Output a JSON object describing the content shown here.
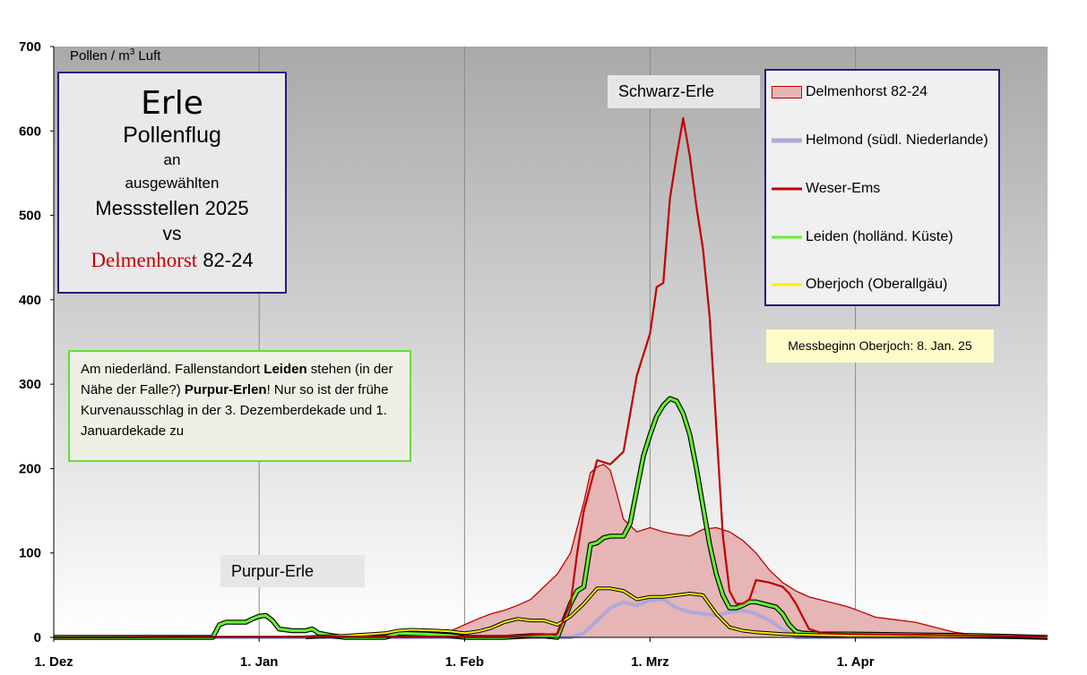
{
  "chart_data": {
    "type": "area",
    "ylabel_prefix": "Pollen / m",
    "ylabel_sup": "3",
    "ylabel_suffix": " Luft",
    "ylim": [
      0,
      700
    ],
    "yticks": [
      "0",
      "100",
      "200",
      "300",
      "400",
      "500",
      "600",
      "700"
    ],
    "xlim": [
      0,
      150
    ],
    "xticks": [
      {
        "label": "1. Dez",
        "x": 0
      },
      {
        "label": "1. Jan",
        "x": 31
      },
      {
        "label": "1. Feb",
        "x": 62
      },
      {
        "label": "1. Mrz",
        "x": 90
      },
      {
        "label": "1. Apr",
        "x": 121
      }
    ],
    "grid": "vertical",
    "legend_position": "top-right",
    "series": [
      {
        "name": "Delmenhorst 82-24",
        "style": "area",
        "color": "#c00000",
        "fill": "#e6b5b5",
        "points": [
          [
            0,
            0
          ],
          [
            30,
            0
          ],
          [
            34,
            1
          ],
          [
            40,
            2
          ],
          [
            50,
            4
          ],
          [
            56,
            5
          ],
          [
            60,
            8
          ],
          [
            62,
            15
          ],
          [
            64,
            22
          ],
          [
            66,
            28
          ],
          [
            68,
            32
          ],
          [
            70,
            38
          ],
          [
            72,
            45
          ],
          [
            74,
            60
          ],
          [
            76,
            75
          ],
          [
            78,
            100
          ],
          [
            80,
            160
          ],
          [
            81,
            195
          ],
          [
            82,
            202
          ],
          [
            83,
            205
          ],
          [
            84,
            198
          ],
          [
            85,
            170
          ],
          [
            86,
            140
          ],
          [
            88,
            125
          ],
          [
            90,
            130
          ],
          [
            92,
            125
          ],
          [
            94,
            122
          ],
          [
            96,
            120
          ],
          [
            98,
            128
          ],
          [
            100,
            130
          ],
          [
            102,
            125
          ],
          [
            104,
            115
          ],
          [
            106,
            100
          ],
          [
            108,
            80
          ],
          [
            110,
            65
          ],
          [
            112,
            55
          ],
          [
            114,
            48
          ],
          [
            116,
            44
          ],
          [
            118,
            40
          ],
          [
            120,
            36
          ],
          [
            122,
            30
          ],
          [
            124,
            24
          ],
          [
            126,
            22
          ],
          [
            128,
            20
          ],
          [
            130,
            18
          ],
          [
            132,
            14
          ],
          [
            134,
            10
          ],
          [
            136,
            6
          ],
          [
            138,
            4
          ],
          [
            140,
            3
          ],
          [
            144,
            2
          ],
          [
            150,
            1
          ]
        ]
      },
      {
        "name": "Helmond (südl. Niederlande)",
        "style": "line",
        "color": "#b0a8d8",
        "points": [
          [
            0,
            0
          ],
          [
            62,
            0
          ],
          [
            78,
            0
          ],
          [
            80,
            5
          ],
          [
            82,
            20
          ],
          [
            84,
            35
          ],
          [
            86,
            42
          ],
          [
            88,
            38
          ],
          [
            90,
            44
          ],
          [
            92,
            45
          ],
          [
            94,
            35
          ],
          [
            96,
            30
          ],
          [
            98,
            28
          ],
          [
            100,
            26
          ],
          [
            102,
            30
          ],
          [
            104,
            32
          ],
          [
            106,
            28
          ],
          [
            108,
            20
          ],
          [
            110,
            10
          ],
          [
            112,
            0
          ],
          [
            150,
            0
          ]
        ]
      },
      {
        "name": "Weser-Ems",
        "style": "line",
        "color": "#c00000",
        "points": [
          [
            0,
            0
          ],
          [
            40,
            1
          ],
          [
            60,
            1
          ],
          [
            70,
            2
          ],
          [
            76,
            4
          ],
          [
            78,
            40
          ],
          [
            79,
            100
          ],
          [
            80,
            150
          ],
          [
            82,
            210
          ],
          [
            84,
            205
          ],
          [
            86,
            220
          ],
          [
            88,
            310
          ],
          [
            90,
            360
          ],
          [
            91,
            415
          ],
          [
            92,
            420
          ],
          [
            93,
            520
          ],
          [
            94,
            570
          ],
          [
            95,
            615
          ],
          [
            96,
            570
          ],
          [
            97,
            510
          ],
          [
            98,
            460
          ],
          [
            99,
            380
          ],
          [
            100,
            250
          ],
          [
            101,
            120
          ],
          [
            102,
            55
          ],
          [
            103,
            40
          ],
          [
            104,
            40
          ],
          [
            105,
            45
          ],
          [
            106,
            68
          ],
          [
            108,
            65
          ],
          [
            110,
            60
          ],
          [
            111,
            52
          ],
          [
            112,
            40
          ],
          [
            113,
            25
          ],
          [
            114,
            10
          ],
          [
            116,
            5
          ],
          [
            120,
            4
          ],
          [
            130,
            3
          ],
          [
            140,
            2
          ],
          [
            150,
            1
          ]
        ]
      },
      {
        "name": "Leiden (holländ. Küste)",
        "style": "line",
        "color": "#66ee33",
        "points": [
          [
            0,
            0
          ],
          [
            22,
            0
          ],
          [
            24,
            0
          ],
          [
            25,
            15
          ],
          [
            26,
            18
          ],
          [
            28,
            18
          ],
          [
            29,
            18
          ],
          [
            30,
            22
          ],
          [
            31,
            25
          ],
          [
            32,
            26
          ],
          [
            33,
            20
          ],
          [
            34,
            10
          ],
          [
            36,
            8
          ],
          [
            38,
            8
          ],
          [
            39,
            10
          ],
          [
            40,
            5
          ],
          [
            42,
            2
          ],
          [
            44,
            0
          ],
          [
            50,
            0
          ],
          [
            52,
            5
          ],
          [
            56,
            4
          ],
          [
            60,
            2
          ],
          [
            62,
            0
          ],
          [
            68,
            0
          ],
          [
            72,
            2
          ],
          [
            74,
            2
          ],
          [
            76,
            0
          ],
          [
            78,
            40
          ],
          [
            79,
            55
          ],
          [
            80,
            60
          ],
          [
            81,
            110
          ],
          [
            82,
            112
          ],
          [
            83,
            118
          ],
          [
            84,
            120
          ],
          [
            86,
            120
          ],
          [
            87,
            135
          ],
          [
            88,
            175
          ],
          [
            89,
            215
          ],
          [
            90,
            240
          ],
          [
            91,
            262
          ],
          [
            92,
            275
          ],
          [
            93,
            283
          ],
          [
            94,
            280
          ],
          [
            95,
            265
          ],
          [
            96,
            240
          ],
          [
            97,
            200
          ],
          [
            98,
            155
          ],
          [
            99,
            110
          ],
          [
            100,
            75
          ],
          [
            101,
            50
          ],
          [
            102,
            35
          ],
          [
            103,
            35
          ],
          [
            104,
            38
          ],
          [
            105,
            42
          ],
          [
            106,
            42
          ],
          [
            107,
            40
          ],
          [
            108,
            38
          ],
          [
            109,
            36
          ],
          [
            110,
            28
          ],
          [
            111,
            15
          ],
          [
            112,
            7
          ],
          [
            113,
            5
          ],
          [
            116,
            4
          ],
          [
            120,
            4
          ],
          [
            130,
            3
          ],
          [
            140,
            2
          ],
          [
            150,
            0
          ]
        ]
      },
      {
        "name": "Oberjoch (Oberallgäu)",
        "style": "line",
        "color": "#ffee00",
        "points": [
          [
            38,
            0
          ],
          [
            40,
            1
          ],
          [
            44,
            2
          ],
          [
            48,
            4
          ],
          [
            50,
            5
          ],
          [
            52,
            8
          ],
          [
            54,
            9
          ],
          [
            58,
            8
          ],
          [
            60,
            7
          ],
          [
            62,
            5
          ],
          [
            64,
            7
          ],
          [
            66,
            11
          ],
          [
            68,
            18
          ],
          [
            70,
            22
          ],
          [
            72,
            20
          ],
          [
            74,
            20
          ],
          [
            76,
            15
          ],
          [
            78,
            25
          ],
          [
            80,
            40
          ],
          [
            82,
            58
          ],
          [
            84,
            58
          ],
          [
            86,
            55
          ],
          [
            88,
            45
          ],
          [
            90,
            48
          ],
          [
            92,
            48
          ],
          [
            94,
            50
          ],
          [
            96,
            52
          ],
          [
            98,
            50
          ],
          [
            100,
            28
          ],
          [
            102,
            12
          ],
          [
            104,
            8
          ],
          [
            106,
            6
          ],
          [
            108,
            5
          ],
          [
            110,
            4
          ],
          [
            114,
            3
          ],
          [
            120,
            2
          ],
          [
            130,
            2
          ],
          [
            140,
            1
          ],
          [
            150,
            0
          ]
        ]
      }
    ],
    "annotations": {
      "schwarz_erle": "Schwarz-Erle",
      "purpur_erle": "Purpur-Erle",
      "messbeginn": "Messbeginn Oberjoch:  8. Jan. 25"
    }
  },
  "title_box": {
    "line1": "Erle",
    "line2": "Pollenflug",
    "line3": "an",
    "line4": "ausgewählten",
    "line5": "Messstellen 2025",
    "line6": "vs",
    "line7_red": "Delmenhorst",
    "line7_rest": " 82-24"
  },
  "note": {
    "p1": "Am  niederländ.  Fallenstandort ",
    "b1": "Leiden",
    "p2": "  stehen (in der Nähe der Falle?)  ",
    "b2": "Purpur-Erlen",
    "p3": "! Nur so ist der frühe Kurvenausschlag  in der 3. Dezemberdekade  und 1. Januardekade  zu"
  }
}
